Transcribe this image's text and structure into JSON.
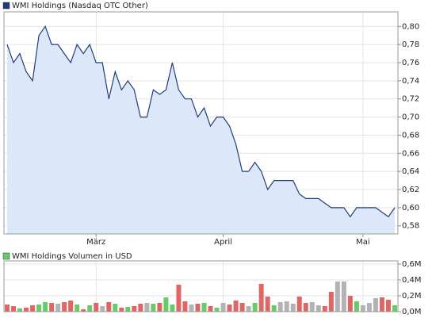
{
  "chart_data": [
    {
      "type": "area",
      "categories": [
        null,
        null,
        null,
        null,
        null,
        null,
        null,
        null,
        null,
        null,
        null,
        null,
        null,
        null,
        "März",
        null,
        null,
        null,
        null,
        null,
        null,
        null,
        null,
        null,
        null,
        null,
        null,
        null,
        null,
        null,
        null,
        null,
        null,
        null,
        "April",
        null,
        null,
        null,
        null,
        null,
        null,
        null,
        null,
        null,
        null,
        null,
        null,
        null,
        null,
        null,
        null,
        null,
        null,
        null,
        null,
        null,
        "Mai",
        null,
        null,
        null,
        null,
        null
      ],
      "series": [
        {
          "name": "WMI Holdings (Nasdaq OTC Other)",
          "color": "#1f3d7a",
          "fill": "#dce8fa",
          "values": [
            0.78,
            0.76,
            0.77,
            0.75,
            0.74,
            0.79,
            0.8,
            0.78,
            0.78,
            0.77,
            0.76,
            0.78,
            0.77,
            0.78,
            0.76,
            0.76,
            0.72,
            0.75,
            0.73,
            0.74,
            0.73,
            0.7,
            0.7,
            0.73,
            0.725,
            0.73,
            0.76,
            0.73,
            0.72,
            0.72,
            0.7,
            0.71,
            0.69,
            0.7,
            0.7,
            0.69,
            0.67,
            0.64,
            0.64,
            0.65,
            0.64,
            0.62,
            0.63,
            0.63,
            0.63,
            0.63,
            0.615,
            0.61,
            0.61,
            0.61,
            0.605,
            0.6,
            0.6,
            0.6,
            0.59,
            0.6,
            0.6,
            0.6,
            0.6,
            0.595,
            0.59,
            0.6
          ]
        }
      ],
      "ylim": [
        0.571,
        0.816
      ],
      "yticks": [
        {
          "value": 0.58,
          "label": "0,58"
        },
        {
          "value": 0.6,
          "label": "0,60"
        },
        {
          "value": 0.62,
          "label": "0,62"
        },
        {
          "value": 0.64,
          "label": "0,64"
        },
        {
          "value": 0.66,
          "label": "0,66"
        },
        {
          "value": 0.68,
          "label": "0,68"
        },
        {
          "value": 0.7,
          "label": "0,70"
        },
        {
          "value": 0.72,
          "label": "0,72"
        },
        {
          "value": 0.74,
          "label": "0,74"
        },
        {
          "value": 0.76,
          "label": "0,76"
        },
        {
          "value": 0.78,
          "label": "0,78"
        },
        {
          "value": 0.8,
          "label": "0,80"
        }
      ],
      "grid": true
    },
    {
      "type": "bar",
      "series": [
        {
          "name": "WMI Holdings Volumen in USD",
          "color": "#66cc66",
          "values": [
            90000,
            70000,
            40000,
            50000,
            80000,
            90000,
            120000,
            110000,
            100000,
            120000,
            140000,
            90000,
            30000,
            80000,
            110000,
            70000,
            120000,
            100000,
            50000,
            60000,
            70000,
            100000,
            110000,
            100000,
            110000,
            180000,
            90000,
            340000,
            130000,
            90000,
            100000,
            110000,
            70000,
            50000,
            110000,
            90000,
            140000,
            110000,
            70000,
            110000,
            350000,
            190000,
            80000,
            120000,
            130000,
            100000,
            190000,
            110000,
            120000,
            80000,
            70000,
            250000,
            380000,
            380000,
            200000,
            130000,
            80000,
            110000,
            170000,
            180000,
            150000,
            80000
          ],
          "colors": [
            "#e06666",
            "#e06666",
            "#66cc66",
            "#e06666",
            "#e06666",
            "#66cc66",
            "#66cc66",
            "#e06666",
            "#b3b3b3",
            "#e06666",
            "#e06666",
            "#66cc66",
            "#e06666",
            "#66cc66",
            "#e06666",
            "#b3b3b3",
            "#e06666",
            "#66cc66",
            "#e06666",
            "#66cc66",
            "#e06666",
            "#e06666",
            "#b3b3b3",
            "#66cc66",
            "#e06666",
            "#66cc66",
            "#66cc66",
            "#e06666",
            "#e06666",
            "#b3b3b3",
            "#e06666",
            "#66cc66",
            "#e06666",
            "#66cc66",
            "#b3b3b3",
            "#e06666",
            "#e06666",
            "#e06666",
            "#b3b3b3",
            "#66cc66",
            "#e06666",
            "#e06666",
            "#66cc66",
            "#b3b3b3",
            "#b3b3b3",
            "#b3b3b3",
            "#e06666",
            "#e06666",
            "#b3b3b3",
            "#b3b3b3",
            "#e06666",
            "#e06666",
            "#b3b3b3",
            "#b3b3b3",
            "#e06666",
            "#66cc66",
            "#b3b3b3",
            "#b3b3b3",
            "#b3b3b3",
            "#e06666",
            "#e06666",
            "#66cc66"
          ]
        }
      ],
      "ylim": [
        0,
        640000
      ],
      "yticks": [
        {
          "value": 0,
          "label": "0,0M"
        },
        {
          "value": 200000,
          "label": "0,2M"
        },
        {
          "value": 400000,
          "label": "0,4M"
        },
        {
          "value": 600000,
          "label": "0,6M"
        }
      ],
      "grid": true
    }
  ]
}
